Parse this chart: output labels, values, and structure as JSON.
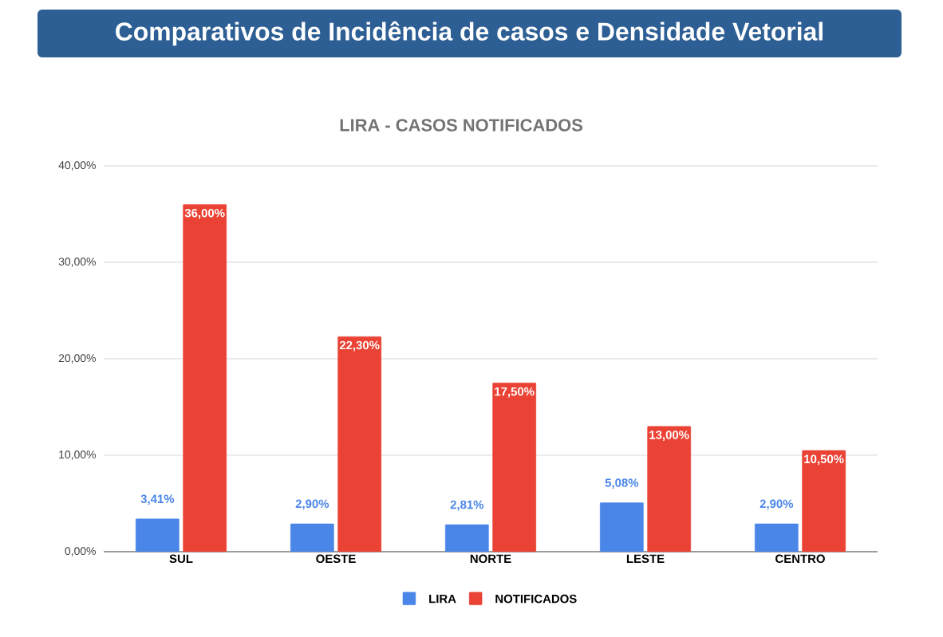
{
  "chart_data": {
    "type": "bar",
    "title": "Comparativos de Incidência de casos e Densidade Vetorial",
    "subtitle": "LIRA - CASOS NOTIFICADOS",
    "categories": [
      "SUL",
      "OESTE",
      "NORTE",
      "LESTE",
      "CENTRO"
    ],
    "series": [
      {
        "name": "LIRA",
        "color": "#4a86e8",
        "values": [
          3.41,
          2.9,
          2.81,
          5.08,
          2.9
        ],
        "value_labels": [
          "3,41%",
          "2,90%",
          "2,81%",
          "5,08%",
          "2,90%"
        ]
      },
      {
        "name": "NOTIFICADOS",
        "color": "#ea4335",
        "values": [
          36.0,
          22.3,
          17.5,
          13.0,
          10.5
        ],
        "value_labels": [
          "36,00%",
          "22,30%",
          "17,50%",
          "13,00%",
          "10,50%"
        ]
      }
    ],
    "ylim": [
      0,
      40
    ],
    "yticks": [
      {
        "value": 0,
        "label": "0,00%"
      },
      {
        "value": 10,
        "label": "10,00%"
      },
      {
        "value": 20,
        "label": "20,00%"
      },
      {
        "value": 30,
        "label": "30,00%"
      },
      {
        "value": 40,
        "label": "40,00%"
      }
    ],
    "grid": "y",
    "legend": "bottom"
  }
}
